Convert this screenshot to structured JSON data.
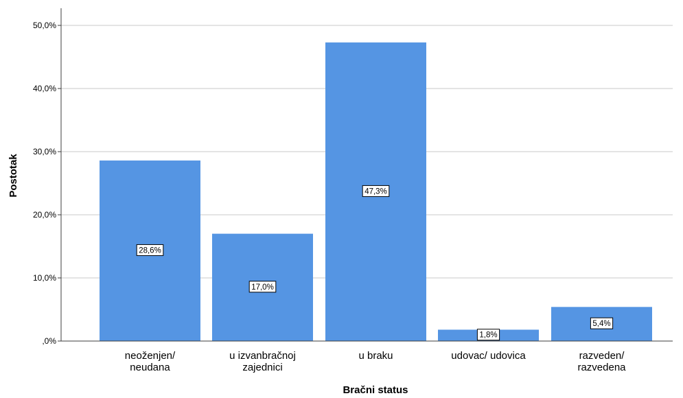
{
  "chart_data": {
    "type": "bar",
    "categories": [
      [
        "neoženjen/",
        "neudana"
      ],
      [
        "u izvanbračnoj",
        "zajednici"
      ],
      [
        "u braku"
      ],
      [
        "udovac/ udovica"
      ],
      [
        "razveden/",
        "razvedena"
      ]
    ],
    "values": [
      28.6,
      17.0,
      47.3,
      1.8,
      5.4
    ],
    "data_labels": [
      "28,6%",
      "17,0%",
      "47,3%",
      "1,8%",
      "5,4%"
    ],
    "xlabel": "Bračni status",
    "ylabel": "Postotak",
    "ylim": [
      0,
      52
    ],
    "yticks": [
      0,
      10,
      20,
      30,
      40,
      50
    ],
    "ytick_labels": [
      ",0%",
      "10,0%",
      "20,0%",
      "30,0%",
      "40,0%",
      "50,0%"
    ],
    "grid": true,
    "legend": "none",
    "colors": {
      "bar": "#5595e3",
      "grid": "#c8c8c8",
      "axis": "#3c3c3c"
    }
  }
}
